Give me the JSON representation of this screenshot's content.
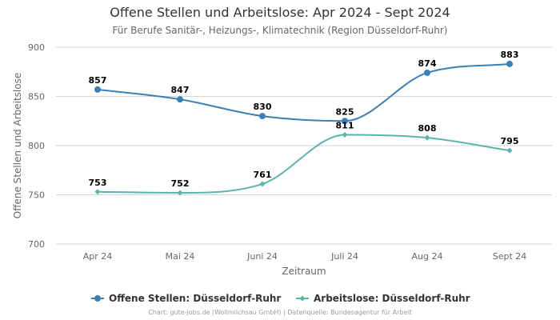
{
  "chart_data": {
    "type": "line",
    "title": "Offene Stellen und Arbeitslose: Apr 2024 - Sept 2024",
    "subtitle": "Für Berufe Sanitär-, Heizungs-, Klimatechnik (Region Düsseldorf-Ruhr)",
    "xlabel": "Zeitraum",
    "ylabel": "Offene Stellen und Arbeitslose",
    "categories": [
      "Apr 24",
      "Mai 24",
      "Juni 24",
      "Juli 24",
      "Aug 24",
      "Sept 24"
    ],
    "ylim": [
      700,
      900
    ],
    "yticks": [
      700,
      750,
      800,
      850,
      900
    ],
    "grid": true,
    "legend_position": "bottom",
    "series": [
      {
        "name": "Offene Stellen: Düsseldorf-Ruhr",
        "values": [
          857,
          847,
          830,
          825,
          874,
          883
        ],
        "color": "#3a7fb7",
        "marker": "circle"
      },
      {
        "name": "Arbeitslose: Düsseldorf-Ruhr",
        "values": [
          753,
          752,
          761,
          811,
          808,
          795
        ],
        "color": "#5ab4ac",
        "marker": "diamond"
      }
    ]
  },
  "credit": "Chart: gute-jobs.de (Wollmilchsau GmbH) | Datenquelle: Bundesagentur für Arbeit"
}
